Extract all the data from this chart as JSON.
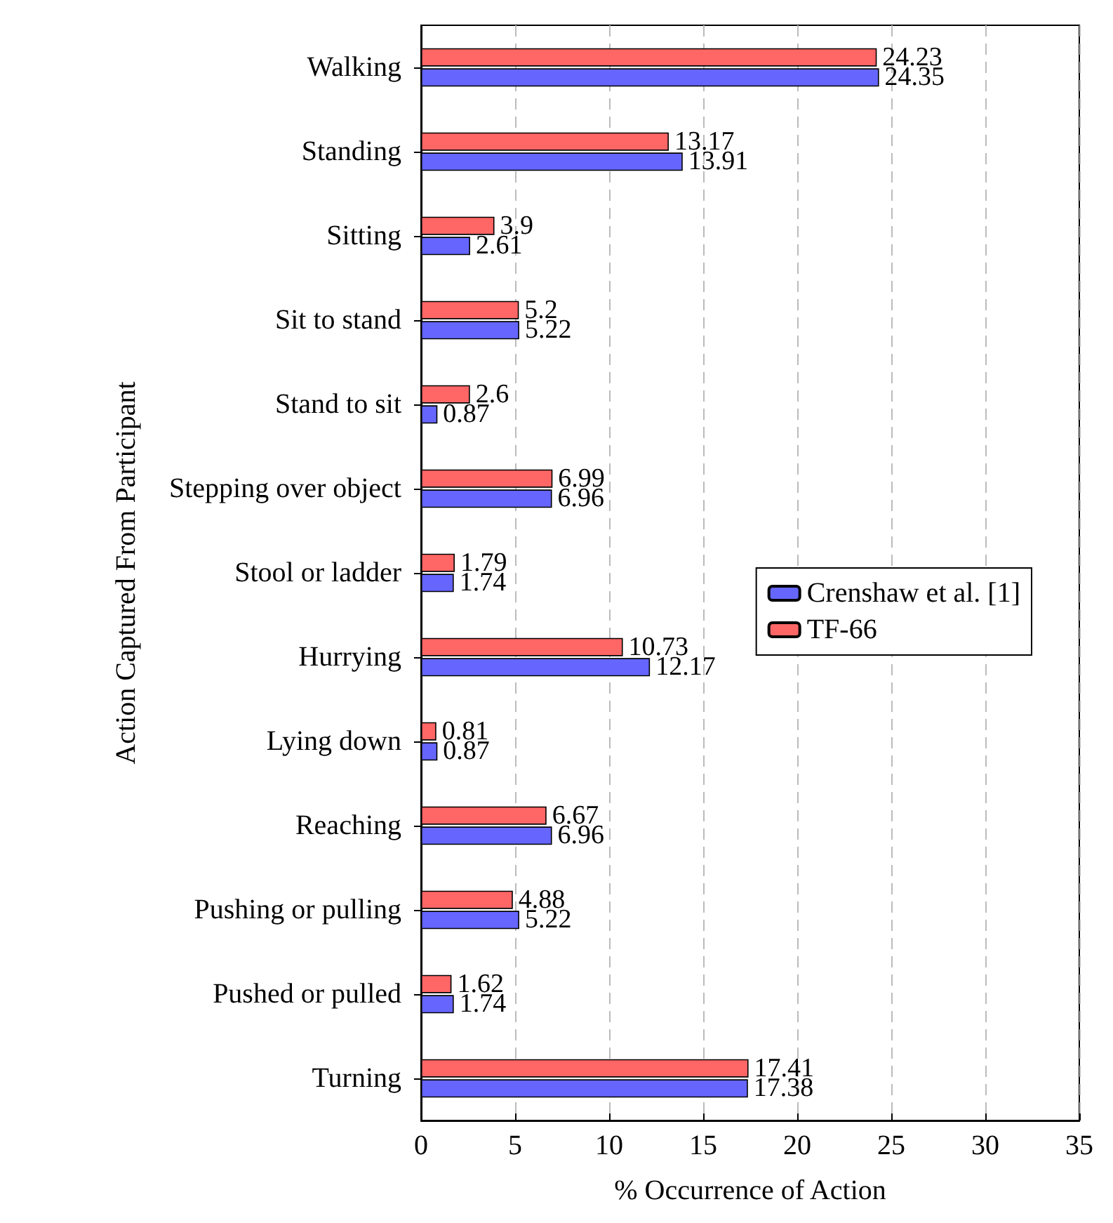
{
  "chart_data": {
    "type": "bar",
    "orientation": "horizontal",
    "xlabel": "% Occurrence of Action",
    "ylabel": "Action Captured From Participant",
    "categories": [
      "Walking",
      "Standing",
      "Sitting",
      "Sit to stand",
      "Stand to sit",
      "Stepping over object",
      "Stool or ladder",
      "Hurrying",
      "Lying down",
      "Reaching",
      "Pushing or pulling",
      "Pushed or pulled",
      "Turning"
    ],
    "series": [
      {
        "name": "Crenshaw et al. [1]",
        "color": "#6666ff",
        "values": [
          24.35,
          13.91,
          2.61,
          5.22,
          0.87,
          6.96,
          1.74,
          12.17,
          0.87,
          6.96,
          5.22,
          1.74,
          17.38
        ]
      },
      {
        "name": "TF-66",
        "color": "#ff6666",
        "values": [
          24.23,
          13.17,
          3.9,
          5.2,
          2.6,
          6.99,
          1.79,
          10.73,
          0.81,
          6.67,
          4.88,
          1.62,
          17.41
        ]
      }
    ],
    "xlim": [
      0,
      35
    ],
    "xticks": [
      0,
      5,
      10,
      15,
      20,
      25,
      30,
      35
    ],
    "grid": "x",
    "legend": "right",
    "data_labels": true
  }
}
